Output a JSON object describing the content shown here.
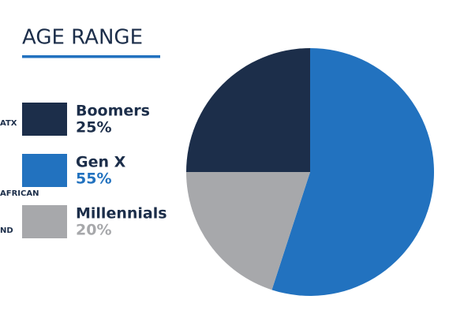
{
  "chart_data": {
    "type": "pie",
    "title": "AGE RANGE",
    "categories": [
      "Boomers",
      "Gen X",
      "Millennials"
    ],
    "values": [
      25,
      55,
      20
    ],
    "value_labels": [
      "25%",
      "55%",
      "20%"
    ],
    "colors": [
      "#1c2e4a",
      "#2272bf",
      "#a7a8ab"
    ]
  },
  "side_labels": [
    "ATX",
    "AFRICAN",
    "ND"
  ]
}
